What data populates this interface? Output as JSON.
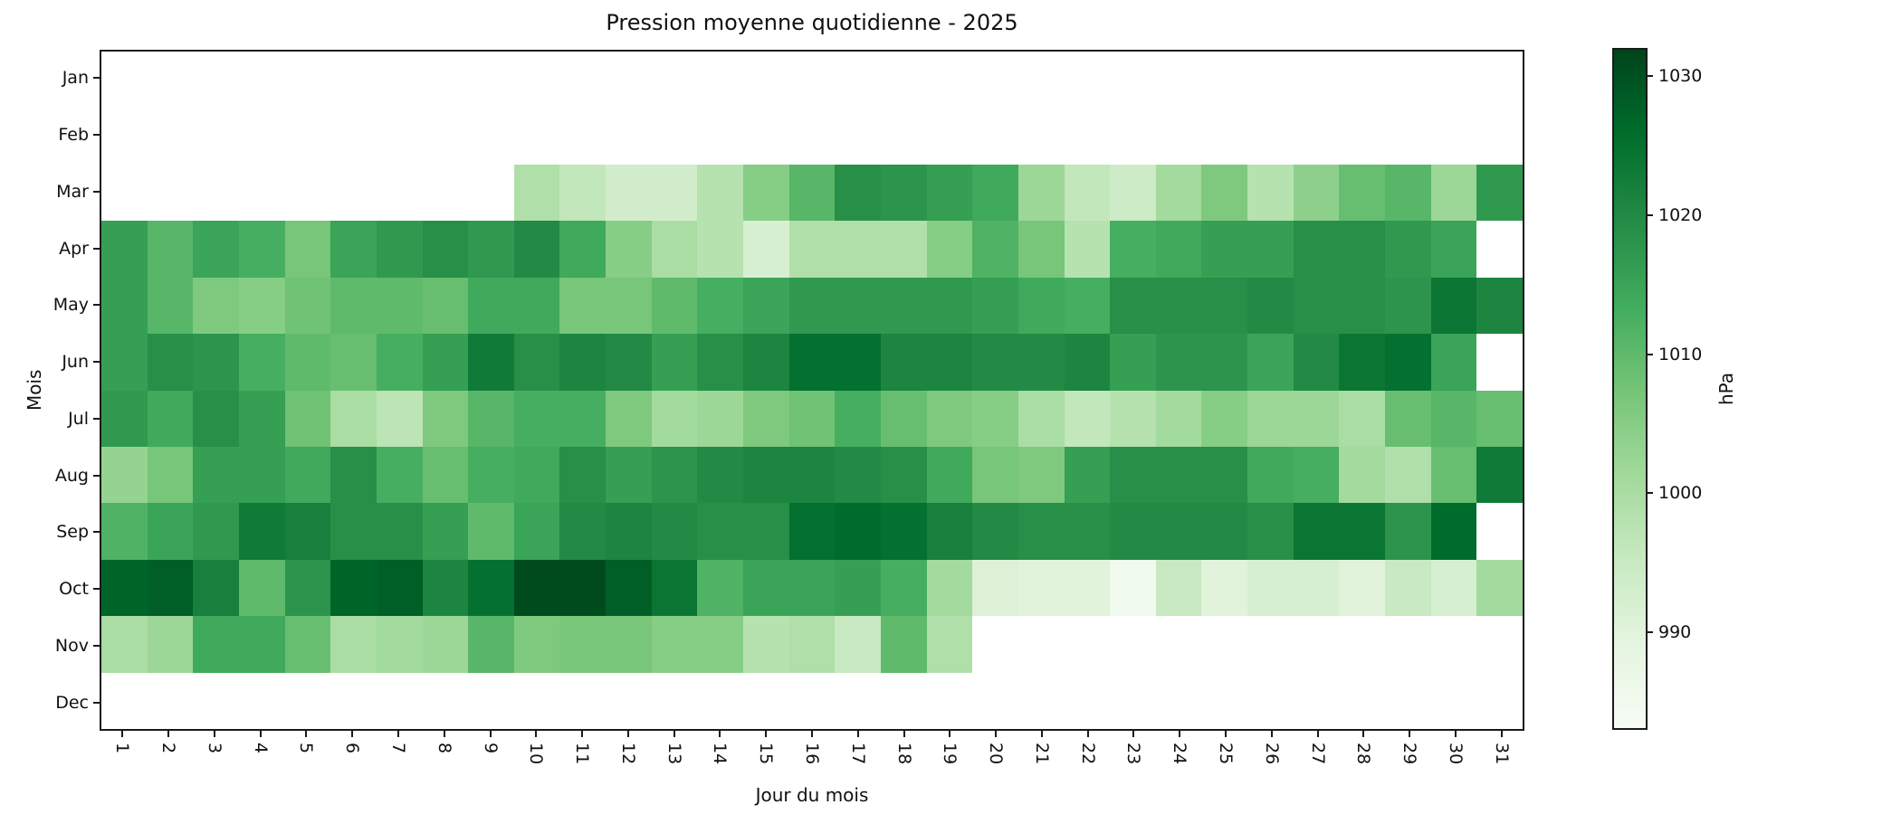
{
  "chart_data": {
    "type": "heatmap",
    "title": "Pression moyenne quotidienne - 2025",
    "xlabel": "Jour du mois",
    "ylabel": "Mois",
    "colorbar_label": "hPa",
    "colormap": "Greens",
    "vmin": 983,
    "vmax": 1032,
    "colorbar_ticks": [
      990,
      1000,
      1010,
      1020,
      1030
    ],
    "grid": false,
    "legend": false,
    "x_ticklabels": [
      "1",
      "2",
      "3",
      "4",
      "5",
      "6",
      "7",
      "8",
      "9",
      "10",
      "11",
      "12",
      "13",
      "14",
      "15",
      "16",
      "17",
      "18",
      "19",
      "20",
      "21",
      "22",
      "23",
      "24",
      "25",
      "26",
      "27",
      "28",
      "29",
      "30",
      "31"
    ],
    "y_ticklabels": [
      "Jan",
      "Feb",
      "Mar",
      "Apr",
      "May",
      "Jun",
      "Jul",
      "Aug",
      "Sep",
      "Oct",
      "Nov",
      "Dec"
    ],
    "colormap_stops": [
      "#f7fcf5",
      "#e5f5e0",
      "#c7e9c0",
      "#a1d99b",
      "#74c476",
      "#41ab5d",
      "#238b45",
      "#006d2c",
      "#00441b"
    ],
    "missing_color": "#ffffff",
    "values": [
      [
        null,
        null,
        null,
        null,
        null,
        null,
        null,
        null,
        null,
        null,
        null,
        null,
        null,
        null,
        null,
        null,
        null,
        null,
        null,
        null,
        null,
        null,
        null,
        null,
        null,
        null,
        null,
        null,
        null,
        null,
        null
      ],
      [
        null,
        null,
        null,
        null,
        null,
        null,
        null,
        null,
        null,
        null,
        null,
        null,
        null,
        null,
        null,
        null,
        null,
        null,
        null,
        null,
        null,
        null,
        null,
        null,
        null,
        null,
        null,
        null,
        null,
        null,
        null
      ],
      [
        null,
        null,
        null,
        null,
        null,
        null,
        null,
        null,
        null,
        999,
        996,
        993,
        993,
        998,
        1005,
        1011,
        1019,
        1018,
        1016,
        1014,
        1002,
        996,
        994,
        1001,
        1006,
        998,
        1004,
        1009,
        1011,
        1002,
        1017
      ],
      [
        1016,
        1011,
        1015,
        1013,
        1007,
        1015,
        1017,
        1019,
        1017,
        1020,
        1014,
        1005,
        1000,
        998,
        992,
        999,
        999,
        999,
        1005,
        1012,
        1007,
        998,
        1013,
        1014,
        1016,
        1016,
        1019,
        1019,
        1017,
        1015,
        null
      ],
      [
        1016,
        1011,
        1006,
        1005,
        1008,
        1010,
        1010,
        1009,
        1014,
        1014,
        1007,
        1007,
        1010,
        1013,
        1015,
        1017,
        1017,
        1017,
        1017,
        1016,
        1014,
        1013,
        1019,
        1019,
        1019,
        1020,
        1019,
        1019,
        1018,
        1024,
        1021
      ],
      [
        1016,
        1019,
        1018,
        1013,
        1010,
        1009,
        1013,
        1016,
        1023,
        1019,
        1021,
        1020,
        1016,
        1019,
        1021,
        1025,
        1025,
        1021,
        1021,
        1020,
        1020,
        1021,
        1016,
        1018,
        1018,
        1015,
        1020,
        1024,
        1025,
        1015,
        null
      ],
      [
        1017,
        1014,
        1019,
        1016,
        1008,
        1000,
        997,
        1006,
        1011,
        1013,
        1013,
        1006,
        1001,
        1002,
        1006,
        1008,
        1013,
        1009,
        1006,
        1005,
        1000,
        996,
        998,
        1001,
        1005,
        1002,
        1002,
        1000,
        1009,
        1011,
        1009
      ],
      [
        1003,
        1007,
        1016,
        1016,
        1014,
        1019,
        1013,
        1009,
        1013,
        1014,
        1019,
        1016,
        1018,
        1020,
        1021,
        1021,
        1020,
        1019,
        1014,
        1007,
        1006,
        1016,
        1019,
        1019,
        1019,
        1014,
        1013,
        1001,
        999,
        1009,
        1023
      ],
      [
        1012,
        1015,
        1017,
        1023,
        1022,
        1019,
        1019,
        1016,
        1010,
        1015,
        1020,
        1021,
        1020,
        1019,
        1019,
        1025,
        1026,
        1025,
        1022,
        1020,
        1019,
        1019,
        1020,
        1020,
        1020,
        1019,
        1024,
        1024,
        1018,
        1026,
        null
      ],
      [
        1027,
        1028,
        1022,
        1010,
        1018,
        1027,
        1028,
        1021,
        1025,
        1031,
        1031,
        1028,
        1024,
        1012,
        1015,
        1015,
        1016,
        1013,
        1001,
        991,
        990,
        990,
        985,
        995,
        990,
        992,
        992,
        990,
        995,
        992,
        1001
      ],
      [
        1000,
        1002,
        1014,
        1014,
        1009,
        1000,
        1001,
        1002,
        1011,
        1006,
        1007,
        1007,
        1005,
        1005,
        998,
        999,
        995,
        1010,
        999,
        null,
        null,
        null,
        null,
        null,
        null,
        null,
        null,
        null,
        null,
        null,
        null
      ],
      [
        null,
        null,
        null,
        null,
        null,
        null,
        null,
        null,
        null,
        null,
        null,
        null,
        null,
        null,
        null,
        null,
        null,
        null,
        null,
        null,
        null,
        null,
        null,
        null,
        null,
        null,
        null,
        null,
        null,
        null,
        null
      ]
    ]
  }
}
